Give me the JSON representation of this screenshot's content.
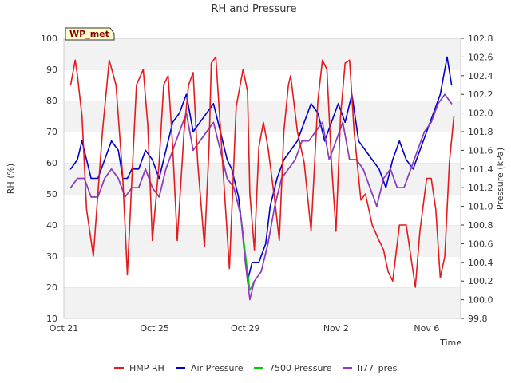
{
  "chart_data": {
    "type": "line",
    "title": "RH and Pressure",
    "badge": "WP_met",
    "xlabel": "Time",
    "ylabel_left": "RH (%)",
    "ylabel_right": "Pressure (kPa)",
    "x_ticks": [
      "Oct 21",
      "Oct 25",
      "Oct 29",
      "Nov 2",
      "Nov 6"
    ],
    "x_tick_days": [
      0,
      4,
      8,
      12,
      16
    ],
    "x_range_days": [
      0,
      17.5
    ],
    "ylim_left": [
      10,
      100
    ],
    "ylim_right": [
      99.8,
      102.8
    ],
    "y_ticks_left": [
      10,
      20,
      30,
      40,
      50,
      60,
      70,
      80,
      90,
      100
    ],
    "y_ticks_right": [
      99.8,
      100.0,
      100.2,
      100.4,
      100.6,
      100.8,
      101.0,
      101.2,
      101.4,
      101.6,
      101.8,
      102.0,
      102.2,
      102.4,
      102.6,
      102.8
    ],
    "grid": "horizontal bands",
    "legend_position": "bottom",
    "series": [
      {
        "name": "HMP RH",
        "axis": "left",
        "color": "#e41a1c",
        "x": [
          0.3,
          0.5,
          0.6,
          0.8,
          1.0,
          1.3,
          1.7,
          2.0,
          2.3,
          2.6,
          2.8,
          3.0,
          3.2,
          3.5,
          3.7,
          3.9,
          4.2,
          4.4,
          4.6,
          4.8,
          5.0,
          5.3,
          5.5,
          5.7,
          5.9,
          6.2,
          6.4,
          6.5,
          6.7,
          7.0,
          7.3,
          7.6,
          7.9,
          8.1,
          8.2,
          8.4,
          8.6,
          8.8,
          9.0,
          9.3,
          9.5,
          9.7,
          9.9,
          10.0,
          10.3,
          10.6,
          10.9,
          11.2,
          11.4,
          11.6,
          11.8,
          12.0,
          12.2,
          12.4,
          12.6,
          12.8,
          13.1,
          13.3,
          13.6,
          13.9,
          14.1,
          14.3,
          14.5,
          14.8,
          15.1,
          15.3,
          15.5,
          15.7,
          16.0,
          16.2,
          16.4,
          16.6,
          16.8,
          17.0,
          17.2
        ],
        "values": [
          85,
          93,
          88,
          75,
          45,
          30,
          70,
          93,
          85,
          55,
          24,
          55,
          85,
          90,
          72,
          35,
          60,
          85,
          88,
          65,
          35,
          70,
          85,
          89,
          60,
          33,
          65,
          92,
          94,
          60,
          26,
          78,
          90,
          83,
          50,
          32,
          65,
          73,
          65,
          48,
          35,
          70,
          85,
          88,
          70,
          60,
          38,
          80,
          93,
          90,
          60,
          38,
          75,
          92,
          93,
          70,
          48,
          50,
          40,
          35,
          32,
          25,
          22,
          40,
          40,
          30,
          20,
          38,
          55,
          55,
          45,
          23,
          30,
          60,
          75
        ]
      },
      {
        "name": "Air Pressure",
        "axis": "right",
        "color": "#0000cc",
        "x": [
          0.3,
          0.6,
          0.8,
          1.0,
          1.2,
          1.5,
          1.8,
          2.1,
          2.4,
          2.6,
          2.8,
          3.0,
          3.3,
          3.6,
          3.9,
          4.2,
          4.5,
          4.8,
          5.1,
          5.4,
          5.7,
          6.0,
          6.3,
          6.6,
          6.9,
          7.2,
          7.4,
          7.7,
          7.9,
          8.1,
          8.3,
          8.6,
          8.9,
          9.1,
          9.4,
          9.7,
          10.0,
          10.3,
          10.6,
          10.9,
          11.2,
          11.5,
          11.8,
          12.1,
          12.4,
          12.7,
          13.0,
          13.3,
          13.6,
          13.9,
          14.2,
          14.5,
          14.8,
          15.1,
          15.4,
          15.7,
          16.0,
          16.3,
          16.6,
          16.9,
          17.1
        ],
        "values": [
          101.4,
          101.5,
          101.7,
          101.5,
          101.3,
          101.3,
          101.5,
          101.7,
          101.6,
          101.3,
          101.3,
          101.4,
          101.4,
          101.6,
          101.5,
          101.3,
          101.6,
          101.9,
          102.0,
          102.2,
          101.8,
          101.9,
          102.0,
          102.1,
          101.8,
          101.5,
          101.4,
          101.1,
          100.7,
          100.2,
          100.4,
          100.4,
          100.6,
          101.0,
          101.3,
          101.5,
          101.6,
          101.7,
          101.9,
          102.1,
          102.0,
          101.7,
          101.9,
          102.1,
          101.9,
          102.2,
          101.7,
          101.6,
          101.5,
          101.4,
          101.2,
          101.5,
          101.7,
          101.5,
          101.4,
          101.6,
          101.8,
          102.0,
          102.2,
          102.6,
          102.3
        ]
      },
      {
        "name": "7500 Pressure",
        "axis": "right",
        "color": "#00cc00",
        "x": [
          0.3,
          0.6,
          0.9,
          1.2,
          1.5,
          1.8,
          2.1,
          2.4,
          2.7,
          3.0,
          3.3,
          3.6,
          3.9,
          4.2,
          4.5,
          4.8,
          5.1,
          5.4,
          5.7,
          6.0,
          6.3,
          6.6,
          6.9,
          7.2,
          7.5,
          7.8,
          8.0,
          8.2,
          8.4,
          8.7,
          9.0,
          9.3,
          9.6,
          9.9,
          10.2,
          10.5,
          10.8,
          11.1,
          11.4,
          11.7,
          12.0,
          12.3,
          12.6,
          12.9,
          13.2,
          13.5,
          13.8,
          14.1,
          14.4,
          14.7,
          15.0,
          15.3,
          15.6,
          15.9,
          16.2,
          16.5,
          16.8,
          17.1
        ],
        "values": [
          101.2,
          101.3,
          101.3,
          101.1,
          101.1,
          101.3,
          101.4,
          101.3,
          101.1,
          101.2,
          101.2,
          101.4,
          101.2,
          101.1,
          101.4,
          101.6,
          101.8,
          102.0,
          101.6,
          101.7,
          101.8,
          101.9,
          101.6,
          101.3,
          101.2,
          100.9,
          100.5,
          100.1,
          100.2,
          100.3,
          100.6,
          101.0,
          101.3,
          101.4,
          101.5,
          101.7,
          101.7,
          101.8,
          101.9,
          101.5,
          101.7,
          101.9,
          101.5,
          101.5,
          101.4,
          101.2,
          101.0,
          101.3,
          101.4,
          101.2,
          101.2,
          101.4,
          101.6,
          101.8,
          101.9,
          102.1,
          102.2,
          102.1
        ]
      },
      {
        "name": "li77_pres",
        "axis": "right",
        "color": "#9933cc",
        "x": [
          0.3,
          0.6,
          0.9,
          1.2,
          1.5,
          1.8,
          2.1,
          2.4,
          2.7,
          3.0,
          3.3,
          3.6,
          3.9,
          4.2,
          4.5,
          4.8,
          5.1,
          5.4,
          5.7,
          6.0,
          6.3,
          6.6,
          6.9,
          7.2,
          7.5,
          7.8,
          8.0,
          8.2,
          8.4,
          8.7,
          9.0,
          9.3,
          9.6,
          9.9,
          10.2,
          10.5,
          10.8,
          11.1,
          11.4,
          11.7,
          12.0,
          12.3,
          12.6,
          12.9,
          13.2,
          13.5,
          13.8,
          14.1,
          14.4,
          14.7,
          15.0,
          15.3,
          15.6,
          15.9,
          16.2,
          16.5,
          16.8,
          17.1
        ],
        "values": [
          101.2,
          101.3,
          101.3,
          101.1,
          101.1,
          101.3,
          101.4,
          101.3,
          101.1,
          101.2,
          101.2,
          101.4,
          101.2,
          101.1,
          101.4,
          101.6,
          101.8,
          102.0,
          101.6,
          101.7,
          101.8,
          101.9,
          101.6,
          101.3,
          101.2,
          100.9,
          100.4,
          100.0,
          100.2,
          100.3,
          100.6,
          101.0,
          101.3,
          101.4,
          101.5,
          101.7,
          101.7,
          101.8,
          101.9,
          101.5,
          101.7,
          101.9,
          101.5,
          101.5,
          101.4,
          101.2,
          101.0,
          101.3,
          101.4,
          101.2,
          101.2,
          101.4,
          101.6,
          101.8,
          101.9,
          102.1,
          102.2,
          102.1
        ]
      }
    ]
  }
}
